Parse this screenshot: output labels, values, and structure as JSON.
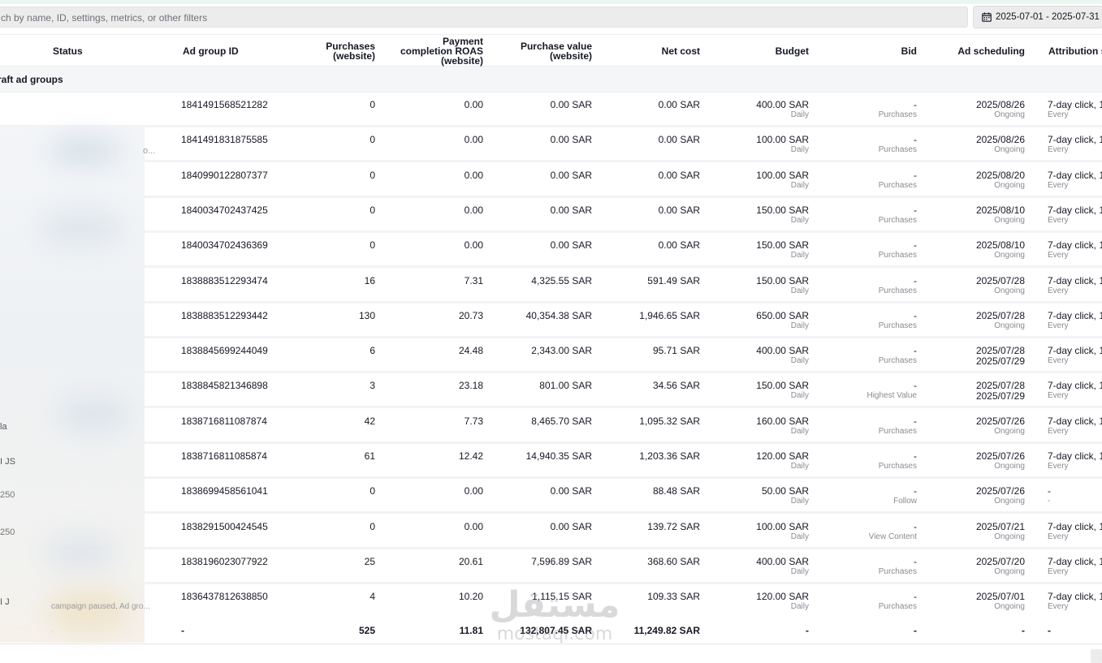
{
  "search": {
    "placeholder": "ch by name, ID, settings, metrics, or other filters"
  },
  "date_range": {
    "label": "2025-07-01 - 2025-07-31"
  },
  "columns": {
    "status": "Status",
    "ad_group_id": "Ad group ID",
    "purchases_l1": "Purchases",
    "purchases_l2": "(website)",
    "roas_l1": "Payment",
    "roas_l2": "completion ROAS",
    "roas_l3": "(website)",
    "pv_l1": "Purchase value",
    "pv_l2": "(website)",
    "net_cost": "Net cost",
    "budget": "Budget",
    "bid": "Bid",
    "scheduling": "Ad scheduling",
    "attribution": "Attribution s"
  },
  "group_label": "raft ad groups",
  "rows": [
    {
      "id": "1841491568521282",
      "purchases": "0",
      "roas": "0.00",
      "pv": "0.00 SAR",
      "cost": "0.00 SAR",
      "budget": "400.00 SAR",
      "budget_sub": "Daily",
      "bid": "-",
      "bid_sub": "Purchases",
      "sched": "2025/08/26",
      "sched_sub": "Ongoing",
      "attr": "7-day click, 1",
      "attr_sub": "Every"
    },
    {
      "id": "1841491831875585",
      "purchases": "0",
      "roas": "0.00",
      "pv": "0.00 SAR",
      "cost": "0.00 SAR",
      "budget": "100.00 SAR",
      "budget_sub": "Daily",
      "bid": "-",
      "bid_sub": "Purchases",
      "sched": "2025/08/26",
      "sched_sub": "Ongoing",
      "attr": "7-day click, 1",
      "attr_sub": "Every"
    },
    {
      "id": "1840990122807377",
      "purchases": "0",
      "roas": "0.00",
      "pv": "0.00 SAR",
      "cost": "0.00 SAR",
      "budget": "100.00 SAR",
      "budget_sub": "Daily",
      "bid": "-",
      "bid_sub": "Purchases",
      "sched": "2025/08/20",
      "sched_sub": "Ongoing",
      "attr": "7-day click, 1",
      "attr_sub": "Every"
    },
    {
      "id": "1840034702437425",
      "purchases": "0",
      "roas": "0.00",
      "pv": "0.00 SAR",
      "cost": "0.00 SAR",
      "budget": "150.00 SAR",
      "budget_sub": "Daily",
      "bid": "-",
      "bid_sub": "Purchases",
      "sched": "2025/08/10",
      "sched_sub": "Ongoing",
      "attr": "7-day click, 1",
      "attr_sub": "Every"
    },
    {
      "id": "1840034702436369",
      "purchases": "0",
      "roas": "0.00",
      "pv": "0.00 SAR",
      "cost": "0.00 SAR",
      "budget": "150.00 SAR",
      "budget_sub": "Daily",
      "bid": "-",
      "bid_sub": "Purchases",
      "sched": "2025/08/10",
      "sched_sub": "Ongoing",
      "attr": "7-day click, 1",
      "attr_sub": "Every"
    },
    {
      "id": "1838883512293474",
      "purchases": "16",
      "roas": "7.31",
      "pv": "4,325.55 SAR",
      "cost": "591.49 SAR",
      "budget": "150.00 SAR",
      "budget_sub": "Daily",
      "bid": "-",
      "bid_sub": "Purchases",
      "sched": "2025/07/28",
      "sched_sub": "Ongoing",
      "attr": "7-day click, 1",
      "attr_sub": "Every"
    },
    {
      "id": "1838883512293442",
      "purchases": "130",
      "roas": "20.73",
      "pv": "40,354.38 SAR",
      "cost": "1,946.65 SAR",
      "budget": "650.00 SAR",
      "budget_sub": "Daily",
      "bid": "-",
      "bid_sub": "Purchases",
      "sched": "2025/07/28",
      "sched_sub": "Ongoing",
      "attr": "7-day click, 1",
      "attr_sub": "Every"
    },
    {
      "id": "1838845699244049",
      "purchases": "6",
      "roas": "24.48",
      "pv": "2,343.00 SAR",
      "cost": "95.71 SAR",
      "budget": "400.00 SAR",
      "budget_sub": "Daily",
      "bid": "-",
      "bid_sub": "Purchases",
      "sched": "2025/07/28",
      "sched_sub": "2025/07/29",
      "attr": "7-day click, 1",
      "attr_sub": "Every"
    },
    {
      "id": "1838845821346898",
      "purchases": "3",
      "roas": "23.18",
      "pv": "801.00 SAR",
      "cost": "34.56 SAR",
      "budget": "150.00 SAR",
      "budget_sub": "Daily",
      "bid": "-",
      "bid_sub": "Highest Value",
      "sched": "2025/07/28",
      "sched_sub": "2025/07/29",
      "attr": "7-day click, 1",
      "attr_sub": "Every"
    },
    {
      "id": "1838716811087874",
      "purchases": "42",
      "roas": "7.73",
      "pv": "8,465.70 SAR",
      "cost": "1,095.32 SAR",
      "budget": "160.00 SAR",
      "budget_sub": "Daily",
      "bid": "-",
      "bid_sub": "Purchases",
      "sched": "2025/07/26",
      "sched_sub": "Ongoing",
      "attr": "7-day click, 1",
      "attr_sub": "Every"
    },
    {
      "id": "1838716811085874",
      "purchases": "61",
      "roas": "12.42",
      "pv": "14,940.35 SAR",
      "cost": "1,203.36 SAR",
      "budget": "120.00 SAR",
      "budget_sub": "Daily",
      "bid": "-",
      "bid_sub": "Purchases",
      "sched": "2025/07/26",
      "sched_sub": "Ongoing",
      "attr": "7-day click, 1",
      "attr_sub": "Every"
    },
    {
      "id": "1838699458561041",
      "purchases": "0",
      "roas": "0.00",
      "pv": "0.00 SAR",
      "cost": "88.48 SAR",
      "budget": "50.00 SAR",
      "budget_sub": "Daily",
      "bid": "-",
      "bid_sub": "Follow",
      "sched": "2025/07/26",
      "sched_sub": "Ongoing",
      "attr": "-",
      "attr_sub": "-"
    },
    {
      "id": "1838291500424545",
      "purchases": "0",
      "roas": "0.00",
      "pv": "0.00 SAR",
      "cost": "139.72 SAR",
      "budget": "100.00 SAR",
      "budget_sub": "Daily",
      "bid": "-",
      "bid_sub": "View Content",
      "sched": "2025/07/21",
      "sched_sub": "Ongoing",
      "attr": "7-day click, 1",
      "attr_sub": "Every"
    },
    {
      "id": "1838196023077922",
      "purchases": "25",
      "roas": "20.61",
      "pv": "7,596.89 SAR",
      "cost": "368.60 SAR",
      "budget": "400.00 SAR",
      "budget_sub": "Daily",
      "bid": "-",
      "bid_sub": "Purchases",
      "sched": "2025/07/20",
      "sched_sub": "Ongoing",
      "attr": "7-day click, 1",
      "attr_sub": "Every"
    },
    {
      "id": "1836437812638850",
      "purchases": "4",
      "roas": "10.20",
      "pv": "1,115.15 SAR",
      "cost": "109.33 SAR",
      "budget": "120.00 SAR",
      "budget_sub": "Daily",
      "bid": "-",
      "bid_sub": "Purchases",
      "sched": "2025/07/01",
      "sched_sub": "Ongoing",
      "attr": "7-day click, 1",
      "attr_sub": "Every"
    }
  ],
  "totals": {
    "status": "-",
    "id": "-",
    "purchases": "525",
    "roas": "11.81",
    "pv": "132,807.45 SAR",
    "cost": "11,249.82 SAR",
    "budget": "-",
    "bid": "-",
    "sched": "-",
    "attr": "-"
  },
  "fragments": {
    "f1": "o...",
    "f2": "la",
    "f3": "I JS",
    "f4": "250",
    "f5": "250",
    "f6": "I J",
    "f7": "campaign paused, Ad gro..."
  },
  "watermark": {
    "arabic": "مستقل",
    "latin": "mostaql.com"
  }
}
